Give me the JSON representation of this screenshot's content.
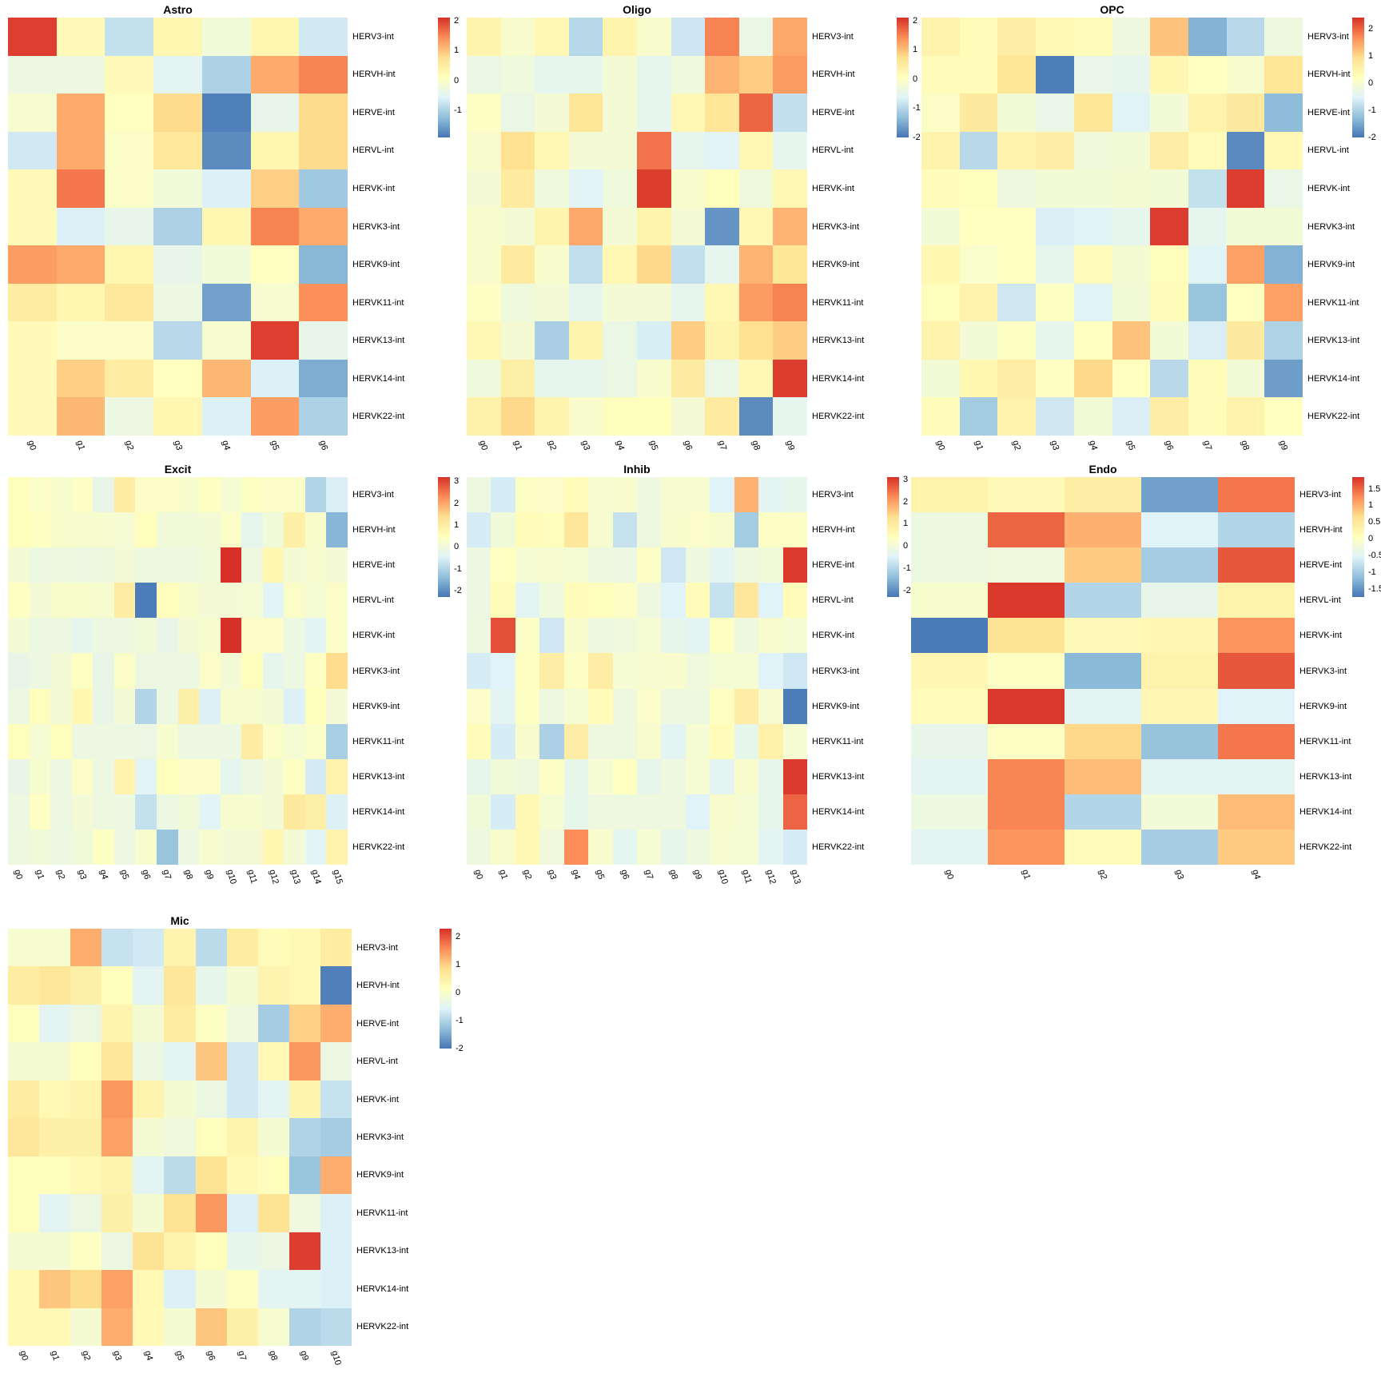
{
  "figure": {
    "background": "#ffffff"
  },
  "colors": {
    "colormap_stops": [
      "#4575b4",
      "#91bfdb",
      "#e0f3f8",
      "#ffffbf",
      "#fee090",
      "#fc8d59",
      "#d73027"
    ]
  },
  "row_labels": [
    "HERV3-int",
    "HERVH-int",
    "HERVE-int",
    "HERVL-int",
    "HERVK-int",
    "HERVK3-int",
    "HERVK9-int",
    "HERVK11-int",
    "HERVK13-int",
    "HERVK14-int",
    "HERVK22-int"
  ],
  "chart_data": [
    {
      "type": "heatmap",
      "title": "Astro",
      "columns": [
        "g0",
        "g1",
        "g2",
        "g3",
        "g4",
        "g5",
        "g6"
      ],
      "vmin": -1.9,
      "vmax": 2.1,
      "legend_ticks": [
        "2",
        "1",
        "0",
        "-1"
      ],
      "values": [
        [
          2.0,
          0.2,
          -0.8,
          0.3,
          -0.2,
          0.3,
          -0.7
        ],
        [
          -0.3,
          -0.3,
          0.2,
          -0.5,
          -1.0,
          1.2,
          1.5
        ],
        [
          -0.1,
          1.2,
          0.1,
          0.8,
          -1.8,
          -0.4,
          0.8
        ],
        [
          -0.7,
          1.2,
          0.0,
          0.6,
          -1.7,
          0.3,
          0.8
        ],
        [
          0.2,
          1.6,
          0.0,
          -0.2,
          -0.6,
          0.9,
          -1.1
        ],
        [
          0.2,
          -0.6,
          -0.4,
          -1.0,
          0.3,
          1.5,
          1.2
        ],
        [
          1.3,
          1.2,
          0.3,
          -0.4,
          -0.2,
          0.1,
          -1.3
        ],
        [
          0.5,
          0.3,
          0.6,
          -0.3,
          -1.5,
          -0.1,
          1.4
        ],
        [
          0.2,
          0.0,
          0.0,
          -0.9,
          -0.1,
          2.0,
          -0.4
        ],
        [
          0.2,
          0.9,
          0.5,
          0.1,
          1.1,
          -0.6,
          -1.4
        ],
        [
          0.2,
          1.1,
          -0.3,
          0.3,
          -0.6,
          1.3,
          -1.0
        ]
      ]
    },
    {
      "type": "heatmap",
      "title": "Oligo",
      "columns": [
        "g0",
        "g1",
        "g2",
        "g3",
        "g4",
        "g5",
        "g6",
        "g7",
        "g8",
        "g9"
      ],
      "vmin": -2.0,
      "vmax": 2.1,
      "legend_ticks": [
        "2",
        "1",
        "0",
        "-1",
        "-2"
      ],
      "values": [
        [
          0.3,
          -0.1,
          0.2,
          -1.0,
          0.3,
          -0.1,
          -0.8,
          1.5,
          -0.4,
          1.2
        ],
        [
          -0.4,
          -0.3,
          -0.5,
          -0.5,
          -0.2,
          -0.5,
          -0.3,
          1.1,
          0.9,
          1.3
        ],
        [
          0.0,
          -0.4,
          -0.2,
          0.6,
          -0.2,
          -0.5,
          0.2,
          0.6,
          1.7,
          -0.9
        ],
        [
          -0.1,
          0.7,
          0.2,
          -0.2,
          -0.2,
          1.6,
          -0.5,
          -0.6,
          0.2,
          -0.5
        ],
        [
          -0.2,
          0.5,
          -0.3,
          -0.6,
          -0.3,
          2.0,
          -0.1,
          0.1,
          -0.3,
          0.2
        ],
        [
          -0.1,
          -0.2,
          0.3,
          1.2,
          -0.2,
          0.3,
          -0.2,
          -1.7,
          0.2,
          1.1
        ],
        [
          -0.1,
          0.5,
          -0.1,
          -0.9,
          0.2,
          0.8,
          -0.9,
          -0.5,
          1.1,
          0.6
        ],
        [
          0.0,
          -0.3,
          -0.2,
          -0.5,
          -0.2,
          -0.2,
          -0.5,
          0.2,
          1.3,
          1.5
        ],
        [
          0.2,
          -0.2,
          -1.1,
          0.3,
          -0.4,
          -0.7,
          0.9,
          0.3,
          0.7,
          0.9
        ],
        [
          -0.3,
          0.4,
          -0.5,
          -0.5,
          -0.4,
          -0.1,
          0.5,
          -0.4,
          0.2,
          2.0
        ],
        [
          0.35,
          0.8,
          0.3,
          -0.1,
          0.1,
          0.1,
          -0.2,
          0.5,
          -1.8,
          -0.5
        ]
      ]
    },
    {
      "type": "heatmap",
      "title": "OPC",
      "columns": [
        "g0",
        "g1",
        "g2",
        "g3",
        "g4",
        "g5",
        "g6",
        "g7",
        "g8",
        "g9"
      ],
      "vmin": -2.0,
      "vmax": 2.4,
      "legend_ticks": [
        "2",
        "1",
        "0",
        "-1",
        "-2"
      ],
      "values": [
        [
          0.5,
          0.3,
          0.6,
          0.35,
          0.3,
          -0.2,
          1.2,
          -1.4,
          -0.9,
          -0.2
        ],
        [
          0.3,
          0.3,
          0.8,
          -1.9,
          -0.3,
          -0.4,
          0.4,
          0.2,
          0.0,
          0.8
        ],
        [
          0.1,
          0.7,
          -0.1,
          -0.3,
          0.8,
          -0.5,
          -0.1,
          0.5,
          0.7,
          -1.3
        ],
        [
          0.5,
          -0.9,
          0.5,
          0.6,
          -0.15,
          -0.1,
          0.6,
          0.3,
          -1.8,
          0.35
        ],
        [
          0.3,
          0.25,
          -0.2,
          -0.1,
          -0.1,
          -0.05,
          -0.1,
          -0.8,
          2.3,
          -0.3
        ],
        [
          -0.1,
          0.2,
          0.2,
          -0.6,
          -0.5,
          -0.4,
          2.3,
          -0.4,
          -0.1,
          -0.1
        ],
        [
          0.4,
          0.05,
          0.2,
          -0.4,
          0.3,
          -0.05,
          0.25,
          -0.5,
          1.5,
          -1.4
        ],
        [
          0.25,
          0.5,
          -0.7,
          0.15,
          -0.5,
          -0.1,
          0.3,
          -1.2,
          0.2,
          1.5
        ],
        [
          0.5,
          -0.1,
          0.15,
          -0.4,
          0.2,
          1.2,
          -0.1,
          -0.6,
          0.7,
          -1.0
        ],
        [
          -0.1,
          0.4,
          0.6,
          0.15,
          1.0,
          0.2,
          -0.9,
          0.3,
          -0.1,
          -1.6
        ],
        [
          0.3,
          -1.1,
          0.5,
          -0.7,
          -0.1,
          -0.6,
          0.6,
          0.3,
          0.5,
          0.2
        ]
      ]
    },
    {
      "type": "heatmap",
      "title": "Excit",
      "columns": [
        "g0",
        "g1",
        "g2",
        "g3",
        "g4",
        "g5",
        "g6",
        "g7",
        "g8",
        "g9",
        "g10",
        "g11",
        "g12",
        "g13",
        "g14",
        "g15"
      ],
      "vmin": -2.3,
      "vmax": 3.2,
      "legend_ticks": [
        "3",
        "2",
        "1",
        "0",
        "-1",
        "-2"
      ],
      "values": [
        [
          0.5,
          0.3,
          0.2,
          0.35,
          -0.2,
          1.0,
          0.3,
          0.3,
          0.2,
          0.4,
          0.15,
          0.4,
          0.3,
          0.3,
          -1.0,
          -0.55
        ],
        [
          0.5,
          0.4,
          0.25,
          0.2,
          0.2,
          0.15,
          0.5,
          0.05,
          0.05,
          0.1,
          0.3,
          -0.3,
          0.05,
          0.9,
          0.25,
          -1.5
        ],
        [
          0.1,
          -0.1,
          -0.05,
          -0.1,
          -0.05,
          0.1,
          -0.05,
          -0.05,
          -0.05,
          0.05,
          3.2,
          -0.05,
          0.7,
          0.1,
          0.2,
          0.1
        ],
        [
          0.4,
          0.1,
          0.25,
          0.25,
          0.2,
          1.0,
          -2.2,
          0.5,
          0.25,
          0.1,
          0.1,
          0.15,
          -0.4,
          0.3,
          0.15,
          0.3
        ],
        [
          0.1,
          -0.1,
          -0.1,
          -0.3,
          -0.1,
          -0.1,
          0.05,
          -0.2,
          0.1,
          0.2,
          3.2,
          0.3,
          0.3,
          -0.1,
          -0.4,
          0.3
        ],
        [
          -0.2,
          -0.1,
          0.1,
          0.4,
          -0.2,
          0.3,
          -0.1,
          -0.1,
          -0.1,
          0.3,
          0.1,
          0.5,
          -0.3,
          -0.1,
          0.4,
          1.4
        ],
        [
          -0.1,
          0.5,
          0.1,
          0.7,
          -0.2,
          0.1,
          -1.0,
          -0.1,
          0.9,
          -0.5,
          0.2,
          0.2,
          0.1,
          -0.5,
          0.5,
          0.1
        ],
        [
          0.5,
          0.15,
          0.5,
          -0.1,
          -0.1,
          -0.1,
          -0.15,
          0.2,
          -0.1,
          -0.1,
          -0.1,
          1.0,
          0.3,
          0.15,
          0.3,
          -1.1
        ],
        [
          -0.2,
          0.2,
          -0.1,
          0.3,
          -0.1,
          0.8,
          -0.4,
          0.5,
          0.3,
          0.3,
          -0.3,
          -0.1,
          0.1,
          0.4,
          -0.6,
          0.8
        ],
        [
          -0.1,
          0.4,
          -0.1,
          0.1,
          -0.05,
          -0.1,
          -0.8,
          -0.1,
          0.05,
          -0.4,
          0.2,
          0.2,
          0.1,
          1.1,
          0.9,
          -0.5
        ],
        [
          -0.05,
          0.05,
          -0.1,
          0.05,
          0.4,
          -0.1,
          0.2,
          -1.3,
          -0.1,
          0.2,
          0.1,
          0.1,
          0.7,
          0.1,
          -0.4,
          0.8
        ]
      ]
    },
    {
      "type": "heatmap",
      "title": "Inhib",
      "columns": [
        "g0",
        "g1",
        "g2",
        "g3",
        "g4",
        "g5",
        "g6",
        "g7",
        "g8",
        "g9",
        "g10",
        "g11",
        "g12",
        "g13"
      ],
      "vmin": -2.3,
      "vmax": 3.1,
      "legend_ticks": [
        "3",
        "2",
        "1",
        "0",
        "-1",
        "-2"
      ],
      "values": [
        [
          -0.1,
          -0.6,
          0.3,
          0.25,
          0.5,
          0.15,
          0.2,
          -0.1,
          0.15,
          0.15,
          -0.5,
          1.8,
          -0.4,
          -0.3
        ],
        [
          -0.6,
          0.0,
          0.5,
          0.45,
          1.1,
          0.15,
          -0.8,
          -0.1,
          0.2,
          0.25,
          0.2,
          -1.2,
          0.3,
          0.3
        ],
        [
          -0.15,
          0.4,
          0.1,
          0.15,
          0.1,
          -0.1,
          -0.15,
          0.3,
          -0.7,
          -0.1,
          -0.4,
          -0.1,
          0.0,
          3.0
        ],
        [
          -0.15,
          0.5,
          -0.4,
          -0.05,
          0.5,
          0.45,
          0.3,
          -0.1,
          -0.5,
          0.5,
          -0.8,
          1.1,
          -0.5,
          0.5
        ],
        [
          -0.1,
          2.8,
          0.3,
          -0.7,
          0.2,
          -0.1,
          -0.05,
          0.1,
          -0.3,
          -0.4,
          0.35,
          -0.1,
          0.2,
          0.1
        ],
        [
          -0.6,
          -0.5,
          0.35,
          0.9,
          0.3,
          0.9,
          0.1,
          0.15,
          0.2,
          -0.05,
          0.1,
          0.1,
          -0.5,
          -0.7
        ],
        [
          0.25,
          -0.4,
          0.35,
          -0.1,
          0.1,
          0.5,
          -0.1,
          0.25,
          -0.1,
          -0.1,
          0.35,
          0.9,
          0.15,
          -2.2
        ],
        [
          0.5,
          -0.6,
          0.2,
          -1.1,
          0.9,
          -0.1,
          -0.1,
          0.2,
          -0.4,
          0.1,
          0.5,
          -0.3,
          0.8,
          0.1
        ],
        [
          -0.3,
          0.0,
          -0.1,
          0.3,
          -0.3,
          0.1,
          0.4,
          -0.3,
          -0.1,
          0.1,
          -0.4,
          0.2,
          -0.3,
          3.0
        ],
        [
          0.0,
          -0.6,
          0.6,
          0.1,
          -0.3,
          -0.1,
          -0.1,
          -0.1,
          -0.1,
          -0.5,
          0.2,
          0.1,
          -0.3,
          2.6
        ],
        [
          -0.1,
          0.2,
          0.6,
          -0.05,
          2.2,
          0.2,
          -0.35,
          0.1,
          -0.3,
          -0.1,
          0.15,
          0.1,
          -0.4,
          -0.6
        ]
      ]
    },
    {
      "type": "heatmap",
      "title": "Endo",
      "columns": [
        "g0",
        "g1",
        "g2",
        "g3",
        "g4"
      ],
      "vmin": -1.75,
      "vmax": 1.85,
      "legend_ticks": [
        "1.5",
        "1",
        "0.5",
        "0",
        "-0.5",
        "-1",
        "-1.5"
      ],
      "values": [
        [
          0.3,
          0.15,
          0.4,
          -1.4,
          1.4
        ],
        [
          -0.3,
          1.5,
          1.0,
          -0.55,
          -0.9
        ],
        [
          -0.3,
          -0.25,
          0.8,
          -1.0,
          1.6
        ],
        [
          -0.1,
          1.8,
          -0.9,
          -0.4,
          0.3
        ],
        [
          -1.7,
          0.6,
          0.15,
          0.2,
          1.2
        ],
        [
          0.2,
          0.0,
          -1.2,
          0.3,
          1.6
        ],
        [
          0.1,
          1.8,
          -0.5,
          0.2,
          -0.55
        ],
        [
          -0.4,
          0.0,
          0.7,
          -1.1,
          1.4
        ],
        [
          -0.5,
          1.3,
          0.9,
          -0.5,
          -0.5
        ],
        [
          -0.3,
          1.3,
          -0.9,
          -0.2,
          0.9
        ],
        [
          -0.5,
          1.2,
          0.1,
          -1.0,
          0.8
        ]
      ]
    },
    {
      "type": "heatmap",
      "title": "Mic",
      "columns": [
        "g0",
        "g1",
        "g2",
        "g3",
        "g4",
        "g5",
        "g6",
        "g7",
        "g8",
        "g9",
        "g10"
      ],
      "vmin": -2.0,
      "vmax": 2.3,
      "legend_ticks": [
        "2",
        "1",
        "0",
        "-1",
        "-2"
      ],
      "values": [
        [
          -0.05,
          -0.05,
          1.3,
          -0.8,
          -0.7,
          0.4,
          -0.9,
          0.6,
          0.25,
          0.3,
          0.6
        ],
        [
          0.6,
          0.7,
          0.5,
          0.2,
          -0.5,
          0.7,
          -0.4,
          -0.1,
          0.4,
          0.3,
          -1.9
        ],
        [
          0.2,
          -0.5,
          -0.3,
          0.4,
          -0.1,
          0.6,
          0.1,
          -0.2,
          -1.1,
          1.0,
          1.3
        ],
        [
          -0.1,
          -0.1,
          0.2,
          0.7,
          -0.3,
          -0.5,
          1.1,
          -0.7,
          0.3,
          1.5,
          -0.3
        ],
        [
          0.6,
          0.3,
          0.4,
          1.5,
          0.4,
          -0.1,
          -0.3,
          -0.7,
          -0.5,
          0.4,
          -0.8
        ],
        [
          0.7,
          0.5,
          0.5,
          1.4,
          -0.1,
          -0.2,
          0.2,
          0.4,
          -0.1,
          -1.0,
          -1.1
        ],
        [
          0.2,
          0.2,
          0.3,
          0.4,
          -0.5,
          -0.9,
          0.8,
          0.3,
          0.2,
          -1.2,
          1.3
        ],
        [
          0.2,
          -0.5,
          -0.3,
          0.5,
          -0.1,
          0.8,
          1.5,
          -0.6,
          0.8,
          -0.2,
          -0.6
        ],
        [
          -0.1,
          -0.1,
          0.1,
          -0.3,
          0.8,
          0.4,
          0.2,
          -0.4,
          -0.3,
          2.2,
          -0.6
        ],
        [
          0.3,
          1.1,
          0.9,
          1.4,
          0.3,
          -0.6,
          -0.1,
          0.1,
          -0.5,
          -0.5,
          -0.6
        ],
        [
          0.3,
          0.3,
          -0.1,
          1.3,
          0.3,
          -0.1,
          1.1,
          0.5,
          -0.05,
          -1.0,
          -0.9
        ]
      ]
    }
  ]
}
